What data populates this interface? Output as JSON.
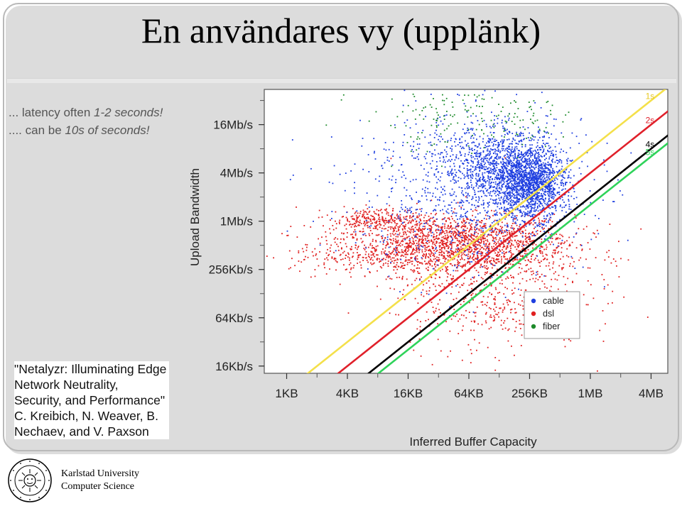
{
  "slide": {
    "title": "En användares vy (upplänk)",
    "latency_note": {
      "line1_prefix": "... latency often ",
      "line1_em": "1-2 seconds!",
      "line2_prefix": ".... can be ",
      "line2_em": "10s of seconds!"
    },
    "citation_lines": [
      "\"Netalyzr: Illuminating Edge",
      "Network Neutrality,",
      "Security, and Performance\"",
      "C. Kreibich, N. Weaver, B.",
      "Nechaev, and V. Paxson"
    ],
    "footer": {
      "university": "Karlstad University",
      "department": "Computer Science",
      "seal_text": "KARLSTADS UNIVERSITET"
    }
  },
  "chart_data": {
    "type": "scatter",
    "title": "",
    "xlabel": "Inferred Buffer Capacity",
    "ylabel": "Upload Bandwidth",
    "x_scale": "log2",
    "y_scale": "log2",
    "x_ticks": [
      "1KB",
      "4KB",
      "16KB",
      "64KB",
      "256KB",
      "1MB",
      "4MB"
    ],
    "y_ticks": [
      "16Kb/s",
      "64Kb/s",
      "256Kb/s",
      "1Mb/s",
      "4Mb/s",
      "16Mb/s"
    ],
    "x_range_kb": [
      0.6,
      6000
    ],
    "y_range_kbps": [
      13,
      45000
    ],
    "legend_position": "bottom-right-inside",
    "series": [
      {
        "name": "cable",
        "color": "#1f3fe0",
        "clusters": [
          {
            "buffer_kb": 256,
            "bw_kbps": 3000,
            "spread_x": 0.35,
            "spread_y": 0.45,
            "n": 1400
          },
          {
            "buffer_kb": 128,
            "bw_kbps": 5000,
            "spread_x": 0.6,
            "spread_y": 0.5,
            "n": 900
          },
          {
            "buffer_kb": 64,
            "bw_kbps": 2500,
            "spread_x": 1.2,
            "spread_y": 1.1,
            "n": 900
          }
        ]
      },
      {
        "name": "dsl",
        "color": "#e02020",
        "clusters": [
          {
            "buffer_kb": 48,
            "bw_kbps": 640,
            "spread_x": 1.2,
            "spread_y": 0.3,
            "n": 1100
          },
          {
            "buffer_kb": 24,
            "bw_kbps": 384,
            "spread_x": 1.4,
            "spread_y": 0.25,
            "n": 700
          },
          {
            "buffer_kb": 8,
            "bw_kbps": 1100,
            "spread_x": 0.5,
            "spread_y": 0.15,
            "n": 250
          },
          {
            "buffer_kb": 96,
            "bw_kbps": 180,
            "spread_x": 1.0,
            "spread_y": 0.9,
            "n": 700
          }
        ]
      },
      {
        "name": "fiber",
        "color": "#1d8a2a",
        "clusters": [
          {
            "buffer_kb": 40,
            "bw_kbps": 20000,
            "spread_x": 0.9,
            "spread_y": 0.45,
            "n": 120
          },
          {
            "buffer_kb": 200,
            "bw_kbps": 18000,
            "spread_x": 0.5,
            "spread_y": 0.3,
            "n": 50
          }
        ]
      }
    ],
    "reference_lines": [
      {
        "label": "5s",
        "seconds": 5,
        "color": "#2fd35a"
      },
      {
        "label": "1s",
        "seconds": 1,
        "color": "#f4e04a"
      },
      {
        "label": "2s",
        "seconds": 2,
        "color": "#e0202a"
      },
      {
        "label": "4s",
        "seconds": 4,
        "color": "#000000"
      }
    ],
    "legend": [
      {
        "label": "cable",
        "color": "#1f3fe0"
      },
      {
        "label": "dsl",
        "color": "#e02020"
      },
      {
        "label": "fiber",
        "color": "#1d8a2a"
      }
    ]
  }
}
